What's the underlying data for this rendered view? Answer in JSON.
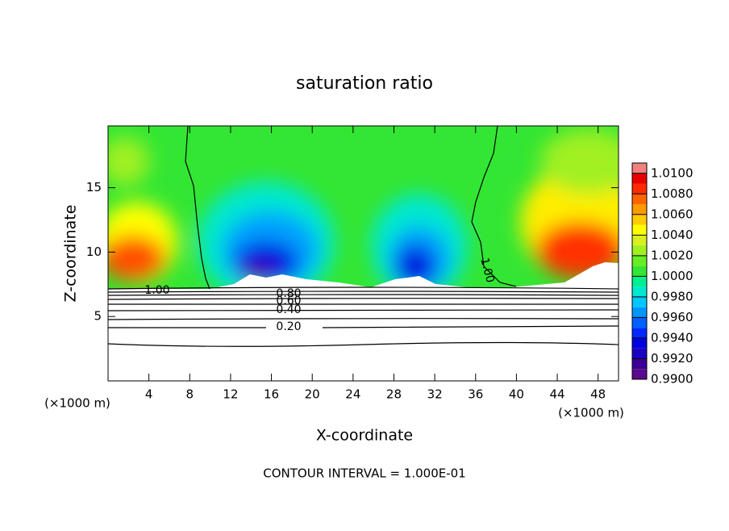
{
  "chart_data": {
    "type": "contour",
    "title": "saturation ratio",
    "x_label": "X-coordinate",
    "y_label": "Z-coordinate",
    "x_unit_labels": [
      "(×1000 m)",
      "(×1000 m)"
    ],
    "footer": "CONTOUR INTERVAL = 1.000E-01",
    "xlim": [
      0,
      50
    ],
    "ylim": [
      0,
      19.8
    ],
    "xticks": [
      4,
      8,
      12,
      16,
      20,
      24,
      28,
      32,
      36,
      40,
      44,
      48
    ],
    "yticks": [
      5,
      10,
      15
    ],
    "contour_labels": [
      "1.00",
      "0.80",
      "0.60",
      "0.40",
      "0.20",
      "1.00"
    ],
    "colorbar": {
      "lim": [
        0.99,
        1.011
      ],
      "ticks": [
        {
          "value": 1.01,
          "label": "1.0100"
        },
        {
          "value": 1.008,
          "label": "1.0080"
        },
        {
          "value": 1.006,
          "label": "1.0060"
        },
        {
          "value": 1.004,
          "label": "1.0040"
        },
        {
          "value": 1.002,
          "label": "1.0020"
        },
        {
          "value": 1.0,
          "label": "1.0000"
        },
        {
          "value": 0.998,
          "label": "0.9980"
        },
        {
          "value": 0.996,
          "label": "0.9960"
        },
        {
          "value": 0.994,
          "label": "0.9940"
        },
        {
          "value": 0.992,
          "label": "0.9920"
        },
        {
          "value": 0.99,
          "label": "0.9900"
        }
      ],
      "levels": [
        0.99,
        0.991,
        0.992,
        0.993,
        0.994,
        0.995,
        0.996,
        0.997,
        0.998,
        0.999,
        1.0,
        1.001,
        1.002,
        1.003,
        1.004,
        1.005,
        1.006,
        1.007,
        1.008,
        1.009,
        1.01
      ],
      "colors": [
        "#5a0a8c",
        "#3a0096",
        "#1a00c0",
        "#0000e0",
        "#0028ff",
        "#0060ff",
        "#0096ff",
        "#00c8ff",
        "#00e8d0",
        "#00f090",
        "#33e633",
        "#66ee22",
        "#a0f020",
        "#d8f020",
        "#ffff00",
        "#ffcc00",
        "#ff9a00",
        "#ff6400",
        "#ff2a00",
        "#e80000",
        "#f08080"
      ]
    }
  }
}
